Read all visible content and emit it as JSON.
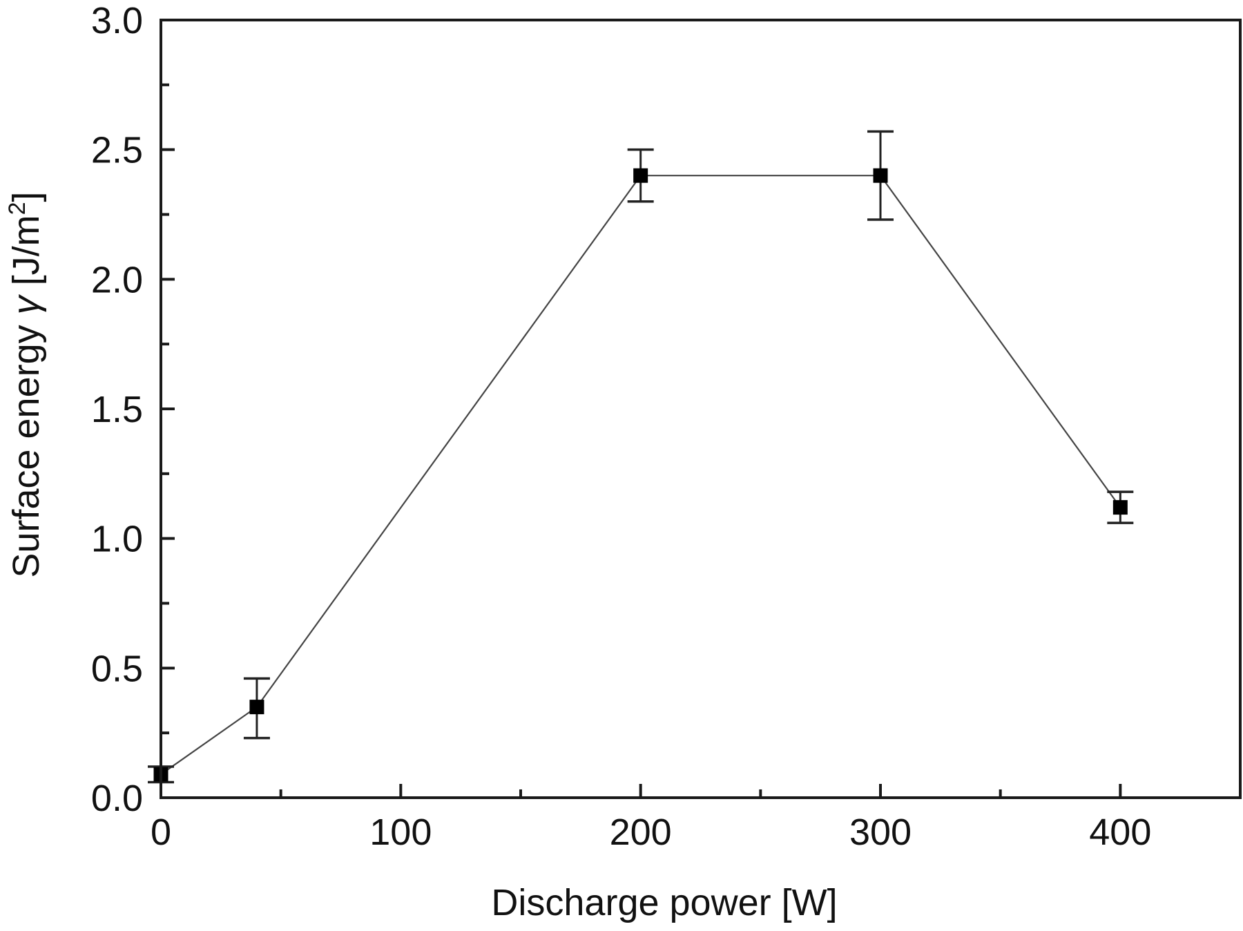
{
  "chart_data": {
    "type": "line",
    "title": "",
    "xlabel": "Discharge power [W]",
    "ylabel_main": "Surface energy ",
    "ylabel_symbol": "γ",
    "ylabel_unit_pre": " [J/m",
    "ylabel_unit_sup": "2",
    "ylabel_unit_post": "]",
    "xlim": [
      0,
      450
    ],
    "ylim": [
      0.0,
      3.0
    ],
    "x_ticks": [
      0,
      100,
      200,
      300,
      400
    ],
    "x_tick_labels": [
      "0",
      "100",
      "200",
      "300",
      "400"
    ],
    "x_minor_ticks": [
      50,
      150,
      250,
      350
    ],
    "y_ticks": [
      0.0,
      0.5,
      1.0,
      1.5,
      2.0,
      2.5,
      3.0
    ],
    "y_tick_labels": [
      "0.0",
      "0.5",
      "1.0",
      "1.5",
      "2.0",
      "2.5",
      "3.0"
    ],
    "y_minor_ticks": [
      0.25,
      0.75,
      1.25,
      1.75,
      2.25,
      2.75
    ],
    "grid": false,
    "legend": null,
    "series": [
      {
        "name": "Surface energy",
        "marker": "filled-square",
        "color": "#000000",
        "line_color": "#444444",
        "x": [
          0,
          40,
          200,
          300,
          400
        ],
        "values": [
          0.09,
          0.35,
          2.4,
          2.4,
          1.12
        ],
        "error_upper": [
          0.12,
          0.46,
          2.5,
          2.57,
          1.18
        ],
        "error_lower": [
          0.06,
          0.23,
          2.3,
          2.23,
          1.06
        ]
      }
    ]
  },
  "style": {
    "axis_color": "#1a1a1a",
    "line_color": "#444444",
    "marker_color": "#000000",
    "background": "#ffffff"
  }
}
